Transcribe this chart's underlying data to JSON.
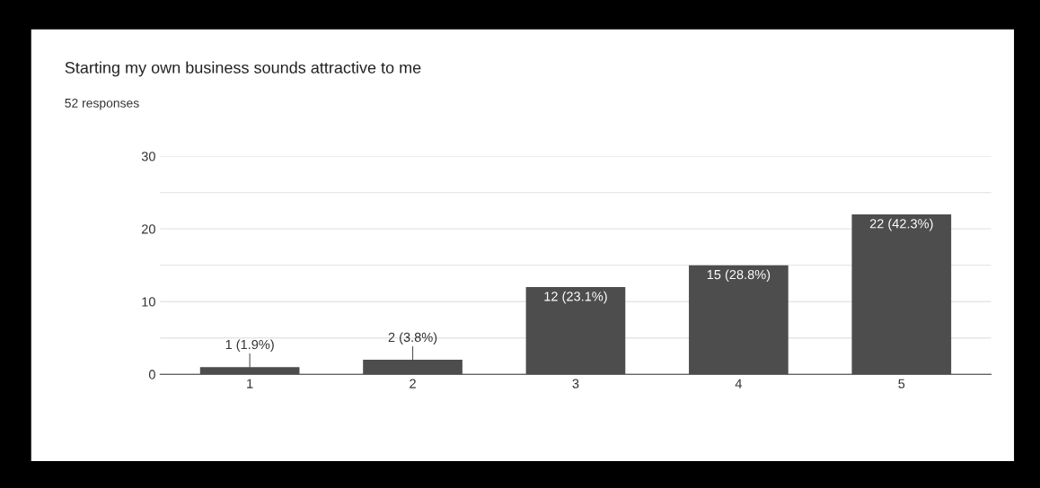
{
  "chart_data": {
    "type": "bar",
    "title": "Starting my own business sounds attractive to me",
    "subtitle": "52 responses",
    "categories": [
      "1",
      "2",
      "3",
      "4",
      "5"
    ],
    "values": [
      1,
      2,
      12,
      15,
      22
    ],
    "color": "#4d4d4d",
    "value_labels": [
      "1 (1.9%)",
      "2 (3.8%)",
      "12 (23.1%)",
      "15 (28.8%)",
      "22 (42.3%)"
    ],
    "ylim": [
      0,
      30
    ],
    "yticks": [
      0,
      {
        "value": 5,
        "label": null
      },
      10,
      {
        "value": 15,
        "label": null
      },
      20,
      {
        "value": 25,
        "label": null
      },
      30
    ],
    "grid": "y"
  }
}
